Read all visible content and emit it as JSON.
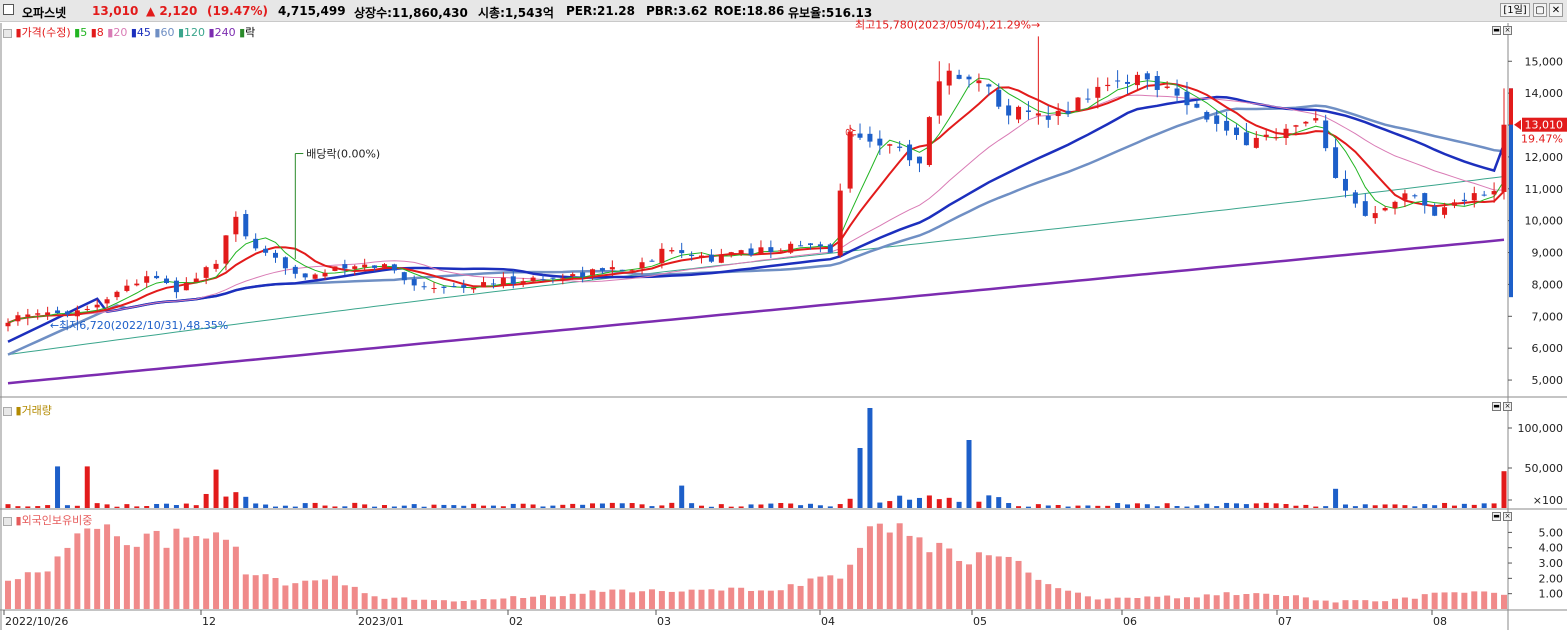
{
  "header": {
    "stock_name": "오파스넷",
    "price": "13,010",
    "change": "▲ 2,120",
    "change_pct": "(19.47%)",
    "volume": "4,715,499",
    "listed": "상장수:11,860,430",
    "mktcap": "시총:1,543억",
    "per": "PER:21.28",
    "pbr": "PBR:3.62",
    "roe": "ROE:18.86",
    "reserve": "유보율:516.13",
    "period": "[1일]"
  },
  "legend": {
    "price_label": "가격(수정)",
    "ma": [
      "5",
      "8",
      "20",
      "45",
      "60",
      "120",
      "240"
    ],
    "ex_label": "락",
    "volume_label": "거래량",
    "foreign_label": "외국인보유비중"
  },
  "annotations": {
    "high": "최고15,780(2023/05/04),21.29%→",
    "low": "←최저6,720(2022/10/31),48.35%",
    "dividend": "배당락(0.00%)",
    "upper_limit": "상",
    "last_price": "13,010",
    "last_pct": "19.47%"
  },
  "colors": {
    "up": "#e21b1b",
    "down": "#1d5fc9",
    "ma5": "#22b522",
    "ma8": "#e21b1b",
    "ma20": "#d97bb5",
    "ma45": "#1c2fbd",
    "ma60": "#6f8fc4",
    "ma120": "#3aa58c",
    "ma240": "#7c2cb0",
    "foreign": "#f08a8a"
  },
  "chart_data": [
    {
      "type": "candlestick",
      "title": "가격(수정)",
      "y_ticks": [
        "15,000",
        "14,000",
        "13,000",
        "12,000",
        "11,000",
        "10,000",
        "9,000",
        "8,000",
        "7,000",
        "6,000",
        "5,000"
      ],
      "ylim": [
        4500,
        16200
      ],
      "x_ticks": [
        "2022/10/26",
        "12",
        "2023/01",
        "02",
        "03",
        "04",
        "05",
        "06",
        "07",
        "08"
      ],
      "close_path": [
        [
          0,
          6900
        ],
        [
          8,
          7250
        ],
        [
          14,
          8300
        ],
        [
          17,
          7800
        ],
        [
          21,
          8700
        ],
        [
          23,
          10100
        ],
        [
          25,
          9000
        ],
        [
          30,
          8300
        ],
        [
          34,
          8500
        ],
        [
          38,
          8600
        ],
        [
          41,
          8000
        ],
        [
          46,
          7900
        ],
        [
          50,
          8100
        ],
        [
          55,
          8200
        ],
        [
          59,
          8400
        ],
        [
          64,
          8600
        ],
        [
          67,
          9200
        ],
        [
          71,
          8800
        ],
        [
          76,
          9100
        ],
        [
          80,
          9200
        ],
        [
          83,
          9100
        ],
        [
          85,
          12700
        ],
        [
          87,
          12600
        ],
        [
          92,
          11900
        ],
        [
          94,
          14500
        ],
        [
          97,
          14600
        ],
        [
          101,
          13500
        ],
        [
          105,
          13100
        ],
        [
          110,
          14200
        ],
        [
          114,
          14500
        ],
        [
          118,
          14100
        ],
        [
          121,
          13200
        ],
        [
          124,
          12500
        ],
        [
          128,
          12700
        ],
        [
          132,
          13100
        ],
        [
          134,
          11200
        ],
        [
          137,
          10200
        ],
        [
          141,
          10900
        ],
        [
          144,
          10300
        ],
        [
          147,
          10700
        ],
        [
          150,
          10900
        ],
        [
          151,
          13010
        ]
      ],
      "ma_levels": {
        "ma45_start": 6200,
        "ma45_peak": 13600,
        "ma45_end": 12400,
        "ma240_start": 4900,
        "ma240_end": 9400
      },
      "last_price": 13010
    },
    {
      "type": "bar",
      "title": "거래량",
      "y_ticks": [
        "100,000",
        "50,000",
        "×100"
      ],
      "ylim": [
        0,
        130000
      ],
      "peaks": [
        {
          "x": 5,
          "value": 52000
        },
        {
          "x": 8,
          "value": 52000
        },
        {
          "x": 21,
          "value": 48000
        },
        {
          "x": 68,
          "value": 28000
        },
        {
          "x": 86,
          "value": 75000
        },
        {
          "x": 87,
          "value": 125000
        },
        {
          "x": 97,
          "value": 85000
        },
        {
          "x": 134,
          "value": 24000
        },
        {
          "x": 151,
          "value": 46000
        }
      ]
    },
    {
      "type": "bar",
      "title": "외국인보유비중",
      "y_ticks": [
        "5.00",
        "4.00",
        "3.00",
        "2.00",
        "1.00"
      ],
      "ylim": [
        0,
        6.2
      ],
      "peaks": [
        {
          "x": 8,
          "value": 5.7
        },
        {
          "x": 22,
          "value": 5.3
        },
        {
          "x": 88,
          "value": 5.6
        },
        {
          "x": 100,
          "value": 3.9
        },
        {
          "x": 145,
          "value": 1.1
        }
      ]
    }
  ]
}
